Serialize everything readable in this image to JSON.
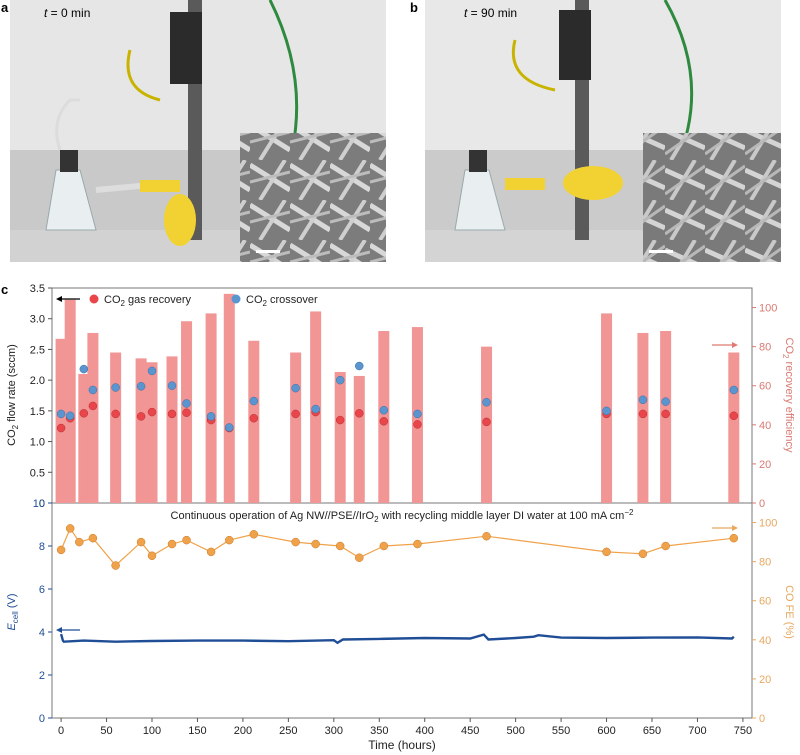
{
  "panels": {
    "a": {
      "letter": "a",
      "time_label_t": "t",
      "time_label_rest": " = 0 min"
    },
    "b": {
      "letter": "b",
      "time_label_t": "t",
      "time_label_rest": " = 90 min"
    },
    "c": {
      "letter": "c"
    }
  },
  "colors": {
    "bar": "#f19595",
    "gas_recovery": "#e8464a",
    "crossover": "#5b95cf",
    "ecell": "#1f4e96",
    "co_fe": "#f0a24a",
    "right_axis_top": "#d97a72",
    "right_axis_bottom": "#e7a85f"
  },
  "chart_data": [
    {
      "type": "bar+scatter",
      "legend": {
        "gas_recovery": "CO2 gas recovery",
        "crossover": "CO2 crossover"
      },
      "ylabel_left": "CO2 flow rate (sccm)",
      "ylabel_right": "CO2 recovery efficiency",
      "ylim_left": [
        0,
        3.5
      ],
      "ylim_right": [
        0,
        110
      ],
      "yticks_left": [
        "0",
        "0.5",
        "1.0",
        "1.5",
        "2.0",
        "2.5",
        "3.0",
        "3.5"
      ],
      "yticks_right": [
        "0",
        "20",
        "40",
        "60",
        "80",
        "100"
      ],
      "x": [
        0,
        10,
        25,
        35,
        60,
        88,
        100,
        122,
        138,
        165,
        185,
        212,
        258,
        280,
        307,
        328,
        355,
        392,
        468,
        600,
        640,
        665,
        740
      ],
      "series": [
        {
          "name": "CO2 recovery efficiency",
          "axis": "right",
          "values": [
            84,
            104,
            66,
            87,
            77,
            74,
            72,
            75,
            93,
            97,
            107,
            83,
            77,
            98,
            67,
            65,
            88,
            90,
            80,
            97,
            87,
            88,
            77
          ]
        },
        {
          "name": "CO2 gas recovery",
          "axis": "left",
          "values": [
            1.22,
            1.38,
            1.46,
            1.58,
            1.45,
            1.41,
            1.48,
            1.45,
            1.47,
            1.35,
            1.22,
            1.38,
            1.45,
            1.48,
            1.35,
            1.46,
            1.33,
            1.28,
            1.32,
            1.45,
            1.45,
            1.45,
            1.42
          ]
        },
        {
          "name": "CO2 crossover",
          "axis": "left",
          "values": [
            1.45,
            1.42,
            2.18,
            1.84,
            1.88,
            1.9,
            2.15,
            1.91,
            1.62,
            1.41,
            1.23,
            1.66,
            1.87,
            1.53,
            2.0,
            2.23,
            1.51,
            1.45,
            1.64,
            1.5,
            1.68,
            1.65,
            1.84
          ]
        }
      ]
    },
    {
      "type": "line",
      "annotation": "Continuous operation of Ag NW//PSE//IrO2 with recycling middle layer DI water at 100 mA cm−2",
      "xlabel": "Time (hours)",
      "ylabel_left": "Ecell (V)",
      "ylabel_right": "CO FE (%)",
      "xlim": [
        -10,
        760
      ],
      "xticks": [
        "0",
        "50",
        "100",
        "150",
        "200",
        "250",
        "300",
        "350",
        "400",
        "450",
        "500",
        "550",
        "600",
        "650",
        "700",
        "750"
      ],
      "ylim_left": [
        0,
        10
      ],
      "ylim_right": [
        0,
        110
      ],
      "yticks_left": [
        "0",
        "2",
        "4",
        "6",
        "8",
        "10"
      ],
      "yticks_right": [
        "0",
        "20",
        "40",
        "60",
        "80",
        "100"
      ],
      "series": [
        {
          "name": "CO FE",
          "axis": "right",
          "x": [
            0,
            10,
            20,
            35,
            60,
            88,
            100,
            122,
            138,
            165,
            185,
            212,
            258,
            280,
            307,
            328,
            355,
            392,
            468,
            600,
            640,
            665,
            740
          ],
          "values": [
            86,
            97,
            90,
            92,
            78,
            90,
            83,
            89,
            91,
            85,
            91,
            94,
            90,
            89,
            88,
            82,
            88,
            89,
            93,
            85,
            84,
            88,
            92
          ]
        },
        {
          "name": "Ecell",
          "axis": "left",
          "x": [
            0,
            2,
            3,
            25,
            60,
            100,
            150,
            200,
            250,
            300,
            304,
            310,
            350,
            400,
            450,
            465,
            470,
            500,
            520,
            525,
            550,
            600,
            650,
            700,
            738,
            740
          ],
          "values": [
            3.9,
            3.6,
            3.55,
            3.6,
            3.55,
            3.58,
            3.6,
            3.6,
            3.57,
            3.62,
            3.5,
            3.65,
            3.68,
            3.72,
            3.7,
            3.88,
            3.65,
            3.72,
            3.78,
            3.85,
            3.74,
            3.72,
            3.74,
            3.75,
            3.7,
            3.78
          ]
        }
      ]
    }
  ]
}
